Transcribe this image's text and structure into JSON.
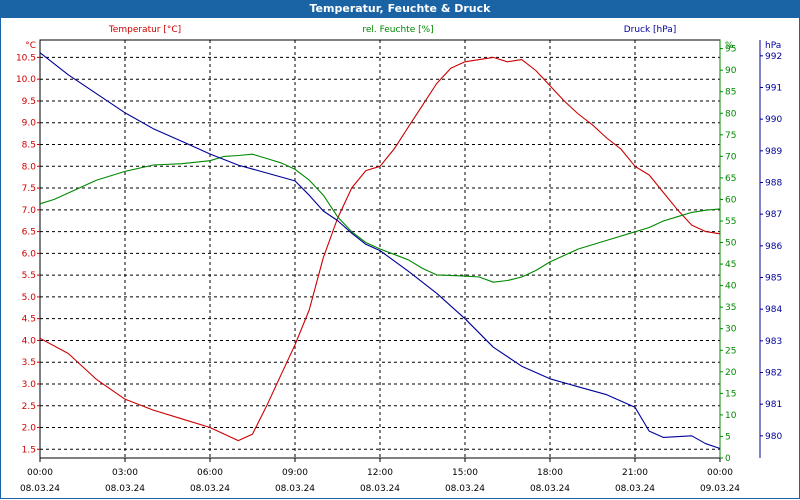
{
  "window": {
    "title": "Temperatur, Feuchte & Druck"
  },
  "colors": {
    "temperature": "#cc0000",
    "humidity": "#008800",
    "pressure": "#000099",
    "grid": "#000000",
    "title_bg": "#1a63a5"
  },
  "chart_data": {
    "type": "line",
    "title": "Temperatur, Feuchte & Druck",
    "x_ticks": [
      {
        "hours": 0,
        "time": "00:00",
        "date": "08.03.24"
      },
      {
        "hours": 3,
        "time": "03:00",
        "date": "08.03.24"
      },
      {
        "hours": 6,
        "time": "06:00",
        "date": "08.03.24"
      },
      {
        "hours": 9,
        "time": "09:00",
        "date": "08.03.24"
      },
      {
        "hours": 12,
        "time": "12:00",
        "date": "08.03.24"
      },
      {
        "hours": 15,
        "time": "15:00",
        "date": "08.03.24"
      },
      {
        "hours": 18,
        "time": "18:00",
        "date": "08.03.24"
      },
      {
        "hours": 21,
        "time": "21:00",
        "date": "08.03.24"
      },
      {
        "hours": 24,
        "time": "00:00",
        "date": "09.03.24"
      }
    ],
    "xlim": [
      0,
      24
    ],
    "axes": {
      "temperature": {
        "label": "Temperatur [°C]",
        "unit": "°C",
        "ylim": [
          1.3,
          10.9
        ],
        "ticks": [
          "1.5",
          "2.0",
          "2.5",
          "3.0",
          "3.5",
          "4.0",
          "4.5",
          "5.0",
          "5.5",
          "6.0",
          "6.5",
          "7.0",
          "7.5",
          "8.0",
          "8.5",
          "9.0",
          "9.5",
          "10.0",
          "10.5"
        ]
      },
      "humidity": {
        "label": "rel. Feuchte [%]",
        "unit": "%",
        "ylim": [
          0,
          97
        ],
        "ticks": [
          "0",
          "5",
          "10",
          "15",
          "20",
          "25",
          "30",
          "35",
          "40",
          "45",
          "50",
          "55",
          "60",
          "65",
          "70",
          "75",
          "80",
          "85",
          "90",
          "95"
        ]
      },
      "pressure": {
        "label": "Druck [hPa]",
        "unit": "hPa",
        "ylim": [
          979.3,
          992.5
        ],
        "ticks": [
          "980",
          "981",
          "982",
          "983",
          "984",
          "985",
          "986",
          "987",
          "988",
          "989",
          "990",
          "991",
          "992"
        ]
      }
    },
    "series": [
      {
        "name": "Temperatur [°C]",
        "axis": "temperature",
        "points": [
          [
            0,
            4.05
          ],
          [
            1,
            3.7
          ],
          [
            2,
            3.1
          ],
          [
            3,
            2.65
          ],
          [
            4,
            2.4
          ],
          [
            5,
            2.2
          ],
          [
            6,
            2.0
          ],
          [
            6.5,
            1.85
          ],
          [
            7,
            1.7
          ],
          [
            7.5,
            1.85
          ],
          [
            8,
            2.5
          ],
          [
            8.5,
            3.2
          ],
          [
            9,
            3.9
          ],
          [
            9.5,
            4.7
          ],
          [
            10,
            5.9
          ],
          [
            10.5,
            6.8
          ],
          [
            11,
            7.5
          ],
          [
            11.5,
            7.9
          ],
          [
            12,
            8.0
          ],
          [
            12.5,
            8.4
          ],
          [
            13,
            8.9
          ],
          [
            13.5,
            9.4
          ],
          [
            14,
            9.9
          ],
          [
            14.5,
            10.25
          ],
          [
            15,
            10.4
          ],
          [
            15.5,
            10.45
          ],
          [
            16,
            10.5
          ],
          [
            16.5,
            10.4
          ],
          [
            17,
            10.45
          ],
          [
            17.5,
            10.2
          ],
          [
            18,
            9.85
          ],
          [
            18.5,
            9.5
          ],
          [
            19,
            9.2
          ],
          [
            19.5,
            8.95
          ],
          [
            20,
            8.65
          ],
          [
            20.5,
            8.4
          ],
          [
            21,
            8.0
          ],
          [
            21.5,
            7.8
          ],
          [
            22,
            7.4
          ],
          [
            22.5,
            7.0
          ],
          [
            23,
            6.65
          ],
          [
            23.5,
            6.5
          ],
          [
            24,
            6.45
          ]
        ]
      },
      {
        "name": "rel. Feuchte [%]",
        "axis": "humidity",
        "points": [
          [
            0,
            59
          ],
          [
            0.5,
            60
          ],
          [
            1,
            61.5
          ],
          [
            1.5,
            63
          ],
          [
            2,
            64.5
          ],
          [
            3,
            66.5
          ],
          [
            4,
            68
          ],
          [
            5,
            68.3
          ],
          [
            6,
            69
          ],
          [
            6.5,
            70
          ],
          [
            7,
            70.2
          ],
          [
            7.5,
            70.5
          ],
          [
            8,
            69.5
          ],
          [
            8.5,
            68.5
          ],
          [
            9,
            67
          ],
          [
            9.5,
            64.5
          ],
          [
            10,
            61
          ],
          [
            10.5,
            56
          ],
          [
            11,
            52.5
          ],
          [
            11.5,
            50
          ],
          [
            12,
            48.5
          ],
          [
            13,
            46
          ],
          [
            13.5,
            44
          ],
          [
            14,
            42.5
          ],
          [
            15,
            42.2
          ],
          [
            15.5,
            42
          ],
          [
            16,
            40.8
          ],
          [
            16.5,
            41.2
          ],
          [
            17,
            42
          ],
          [
            17.5,
            43.5
          ],
          [
            18,
            45.5
          ],
          [
            19,
            48.5
          ],
          [
            20,
            50.5
          ],
          [
            21,
            52.5
          ],
          [
            21.5,
            53.5
          ],
          [
            22,
            55
          ],
          [
            22.5,
            56
          ],
          [
            23,
            57
          ],
          [
            23.5,
            57.5
          ],
          [
            24,
            57.8
          ]
        ]
      },
      {
        "name": "Druck [hPa]",
        "axis": "pressure",
        "points": [
          [
            0,
            992.1
          ],
          [
            1,
            991.4
          ],
          [
            2,
            990.8
          ],
          [
            3,
            990.2
          ],
          [
            4,
            989.7
          ],
          [
            5,
            989.3
          ],
          [
            6,
            988.9
          ],
          [
            7,
            988.55
          ],
          [
            8,
            988.3
          ],
          [
            9,
            988.05
          ],
          [
            9.5,
            987.6
          ],
          [
            10,
            987.1
          ],
          [
            10.5,
            986.8
          ],
          [
            11,
            986.4
          ],
          [
            11.5,
            986.05
          ],
          [
            12,
            985.85
          ],
          [
            13,
            985.2
          ],
          [
            14,
            984.5
          ],
          [
            15,
            983.7
          ],
          [
            16,
            982.8
          ],
          [
            17,
            982.2
          ],
          [
            18,
            981.8
          ],
          [
            19,
            981.55
          ],
          [
            20,
            981.3
          ],
          [
            21,
            980.9
          ],
          [
            21.5,
            980.15
          ],
          [
            22,
            979.95
          ],
          [
            23,
            980.0
          ],
          [
            23.5,
            979.75
          ],
          [
            24,
            979.6
          ]
        ]
      }
    ]
  }
}
